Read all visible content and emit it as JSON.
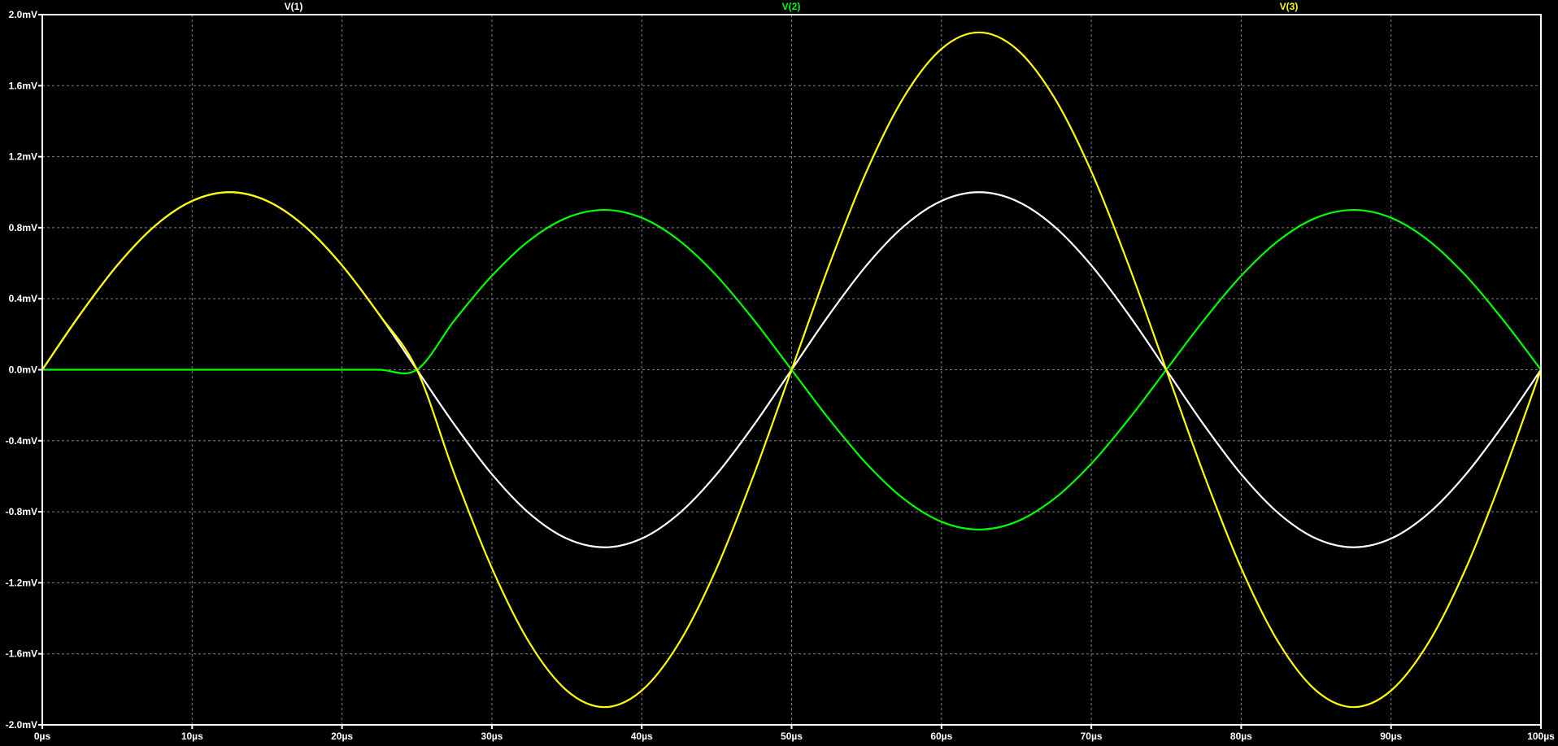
{
  "chart_data": {
    "type": "line",
    "title": "",
    "xlabel": "",
    "ylabel": "",
    "xlim": [
      0,
      100
    ],
    "ylim": [
      -2.0,
      2.0
    ],
    "x_unit": "µs",
    "y_unit": "mV",
    "grid": true,
    "background": "#000000",
    "axis_color": "#ffffff",
    "grid_color": "#808080",
    "legend_placement": "top",
    "x_ticks": [
      "0µs",
      "10µs",
      "20µs",
      "30µs",
      "40µs",
      "50µs",
      "60µs",
      "70µs",
      "80µs",
      "90µs",
      "100µs"
    ],
    "x_tick_values": [
      0,
      10,
      20,
      30,
      40,
      50,
      60,
      70,
      80,
      90,
      100
    ],
    "y_ticks": [
      "2.0mV",
      "1.6mV",
      "1.2mV",
      "0.8mV",
      "0.4mV",
      "0.0mV",
      "-0.4mV",
      "-0.8mV",
      "-1.2mV",
      "-1.6mV",
      "-2.0mV"
    ],
    "y_tick_values": [
      2.0,
      1.6,
      1.2,
      0.8,
      0.4,
      0.0,
      -0.4,
      -0.8,
      -1.2,
      -1.6,
      -2.0
    ],
    "x": [
      0,
      2.5,
      5,
      7.5,
      10,
      12.5,
      15,
      17.5,
      20,
      22.5,
      25,
      27.5,
      30,
      32.5,
      35,
      37.5,
      40,
      42.5,
      45,
      47.5,
      50,
      52.5,
      55,
      57.5,
      60,
      62.5,
      65,
      67.5,
      70,
      72.5,
      75,
      77.5,
      80,
      82.5,
      85,
      87.5,
      90,
      92.5,
      95,
      97.5,
      100
    ],
    "series": [
      {
        "name": "V(1)",
        "color": "#ffffff",
        "values": [
          0,
          0.309,
          0.588,
          0.809,
          0.951,
          1,
          0.951,
          0.809,
          0.588,
          0.309,
          0,
          -0.309,
          -0.588,
          -0.809,
          -0.951,
          -1,
          -0.951,
          -0.809,
          -0.588,
          -0.309,
          0,
          0.309,
          0.588,
          0.809,
          0.951,
          1,
          0.951,
          0.809,
          0.588,
          0.309,
          0,
          -0.309,
          -0.588,
          -0.809,
          -0.951,
          -1,
          -0.951,
          -0.809,
          -0.588,
          -0.309,
          0
        ]
      },
      {
        "name": "V(2)",
        "color": "#00ff00",
        "values": [
          0,
          0,
          0,
          0,
          0,
          0,
          0,
          0,
          0,
          0,
          0,
          0.278,
          0.529,
          0.728,
          0.856,
          0.9,
          0.856,
          0.728,
          0.529,
          0.278,
          0,
          -0.278,
          -0.529,
          -0.728,
          -0.856,
          -0.9,
          -0.856,
          -0.728,
          -0.529,
          -0.278,
          0,
          0.278,
          0.529,
          0.728,
          0.856,
          0.9,
          0.856,
          0.728,
          0.529,
          0.278,
          0
        ]
      },
      {
        "name": "V(3)",
        "color": "#ffff00",
        "values": [
          0,
          0.309,
          0.588,
          0.809,
          0.951,
          1,
          0.951,
          0.809,
          0.588,
          0.309,
          0,
          -0.587,
          -1.117,
          -1.537,
          -1.807,
          -1.9,
          -1.807,
          -1.537,
          -1.117,
          -0.587,
          0,
          0.587,
          1.117,
          1.537,
          1.807,
          1.9,
          1.807,
          1.537,
          1.117,
          0.587,
          0,
          -0.587,
          -1.117,
          -1.537,
          -1.807,
          -1.9,
          -1.807,
          -1.537,
          -1.117,
          -0.587,
          0
        ]
      }
    ]
  }
}
